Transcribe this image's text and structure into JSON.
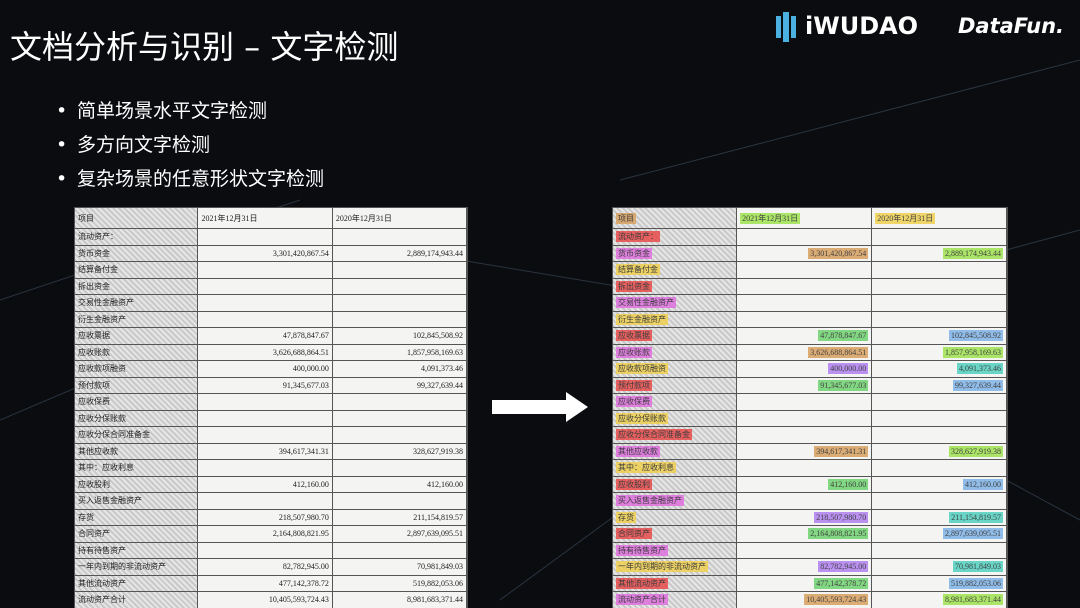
{
  "header": {
    "title": "文档分析与识别 – 文字检测",
    "logos": [
      "iWUDAO",
      "DataFun."
    ]
  },
  "bullets": [
    "简单场景水平文字检测",
    "多方向文字检测",
    "复杂场景的任意形状文字检测"
  ],
  "table": {
    "columns": [
      "项目",
      "2021年12月31日",
      "2020年12月31日"
    ],
    "rows": [
      [
        "流动资产："
      ],
      [
        "货币资金",
        "3,301,420,867.54",
        "2,889,174,943.44"
      ],
      [
        "结算备付金"
      ],
      [
        "拆出资金"
      ],
      [
        "交易性金融资产"
      ],
      [
        "衍生金融资产"
      ],
      [
        "应收票据",
        "47,878,847.67",
        "102,845,508.92"
      ],
      [
        "应收账款",
        "3,626,688,864.51",
        "1,857,958,169.63"
      ],
      [
        "应收款项融资",
        "400,000.00",
        "4,091,373.46"
      ],
      [
        "预付款项",
        "91,345,677.03",
        "99,327,639.44"
      ],
      [
        "应收保费"
      ],
      [
        "应收分保账款"
      ],
      [
        "应收分保合同准备金"
      ],
      [
        "其他应收款",
        "394,617,341.31",
        "328,627,919.38"
      ],
      [
        "其中：应收利息"
      ],
      [
        "应收股利",
        "412,160.00",
        "412,160.00"
      ],
      [
        "买入返售金融资产"
      ],
      [
        "存货",
        "218,507,980.70",
        "211,154,819.57"
      ],
      [
        "合同资产",
        "2,164,808,821.95",
        "2,897,639,095.51"
      ],
      [
        "持有待售资产"
      ],
      [
        "一年内到期的非流动资产",
        "82,782,945.00",
        "70,981,849.03"
      ],
      [
        "其他流动资产",
        "477,142,378.72",
        "519,882,053.06"
      ],
      [
        "流动资产合计",
        "10,405,593,724.43",
        "8,981,683,371.44"
      ]
    ]
  }
}
